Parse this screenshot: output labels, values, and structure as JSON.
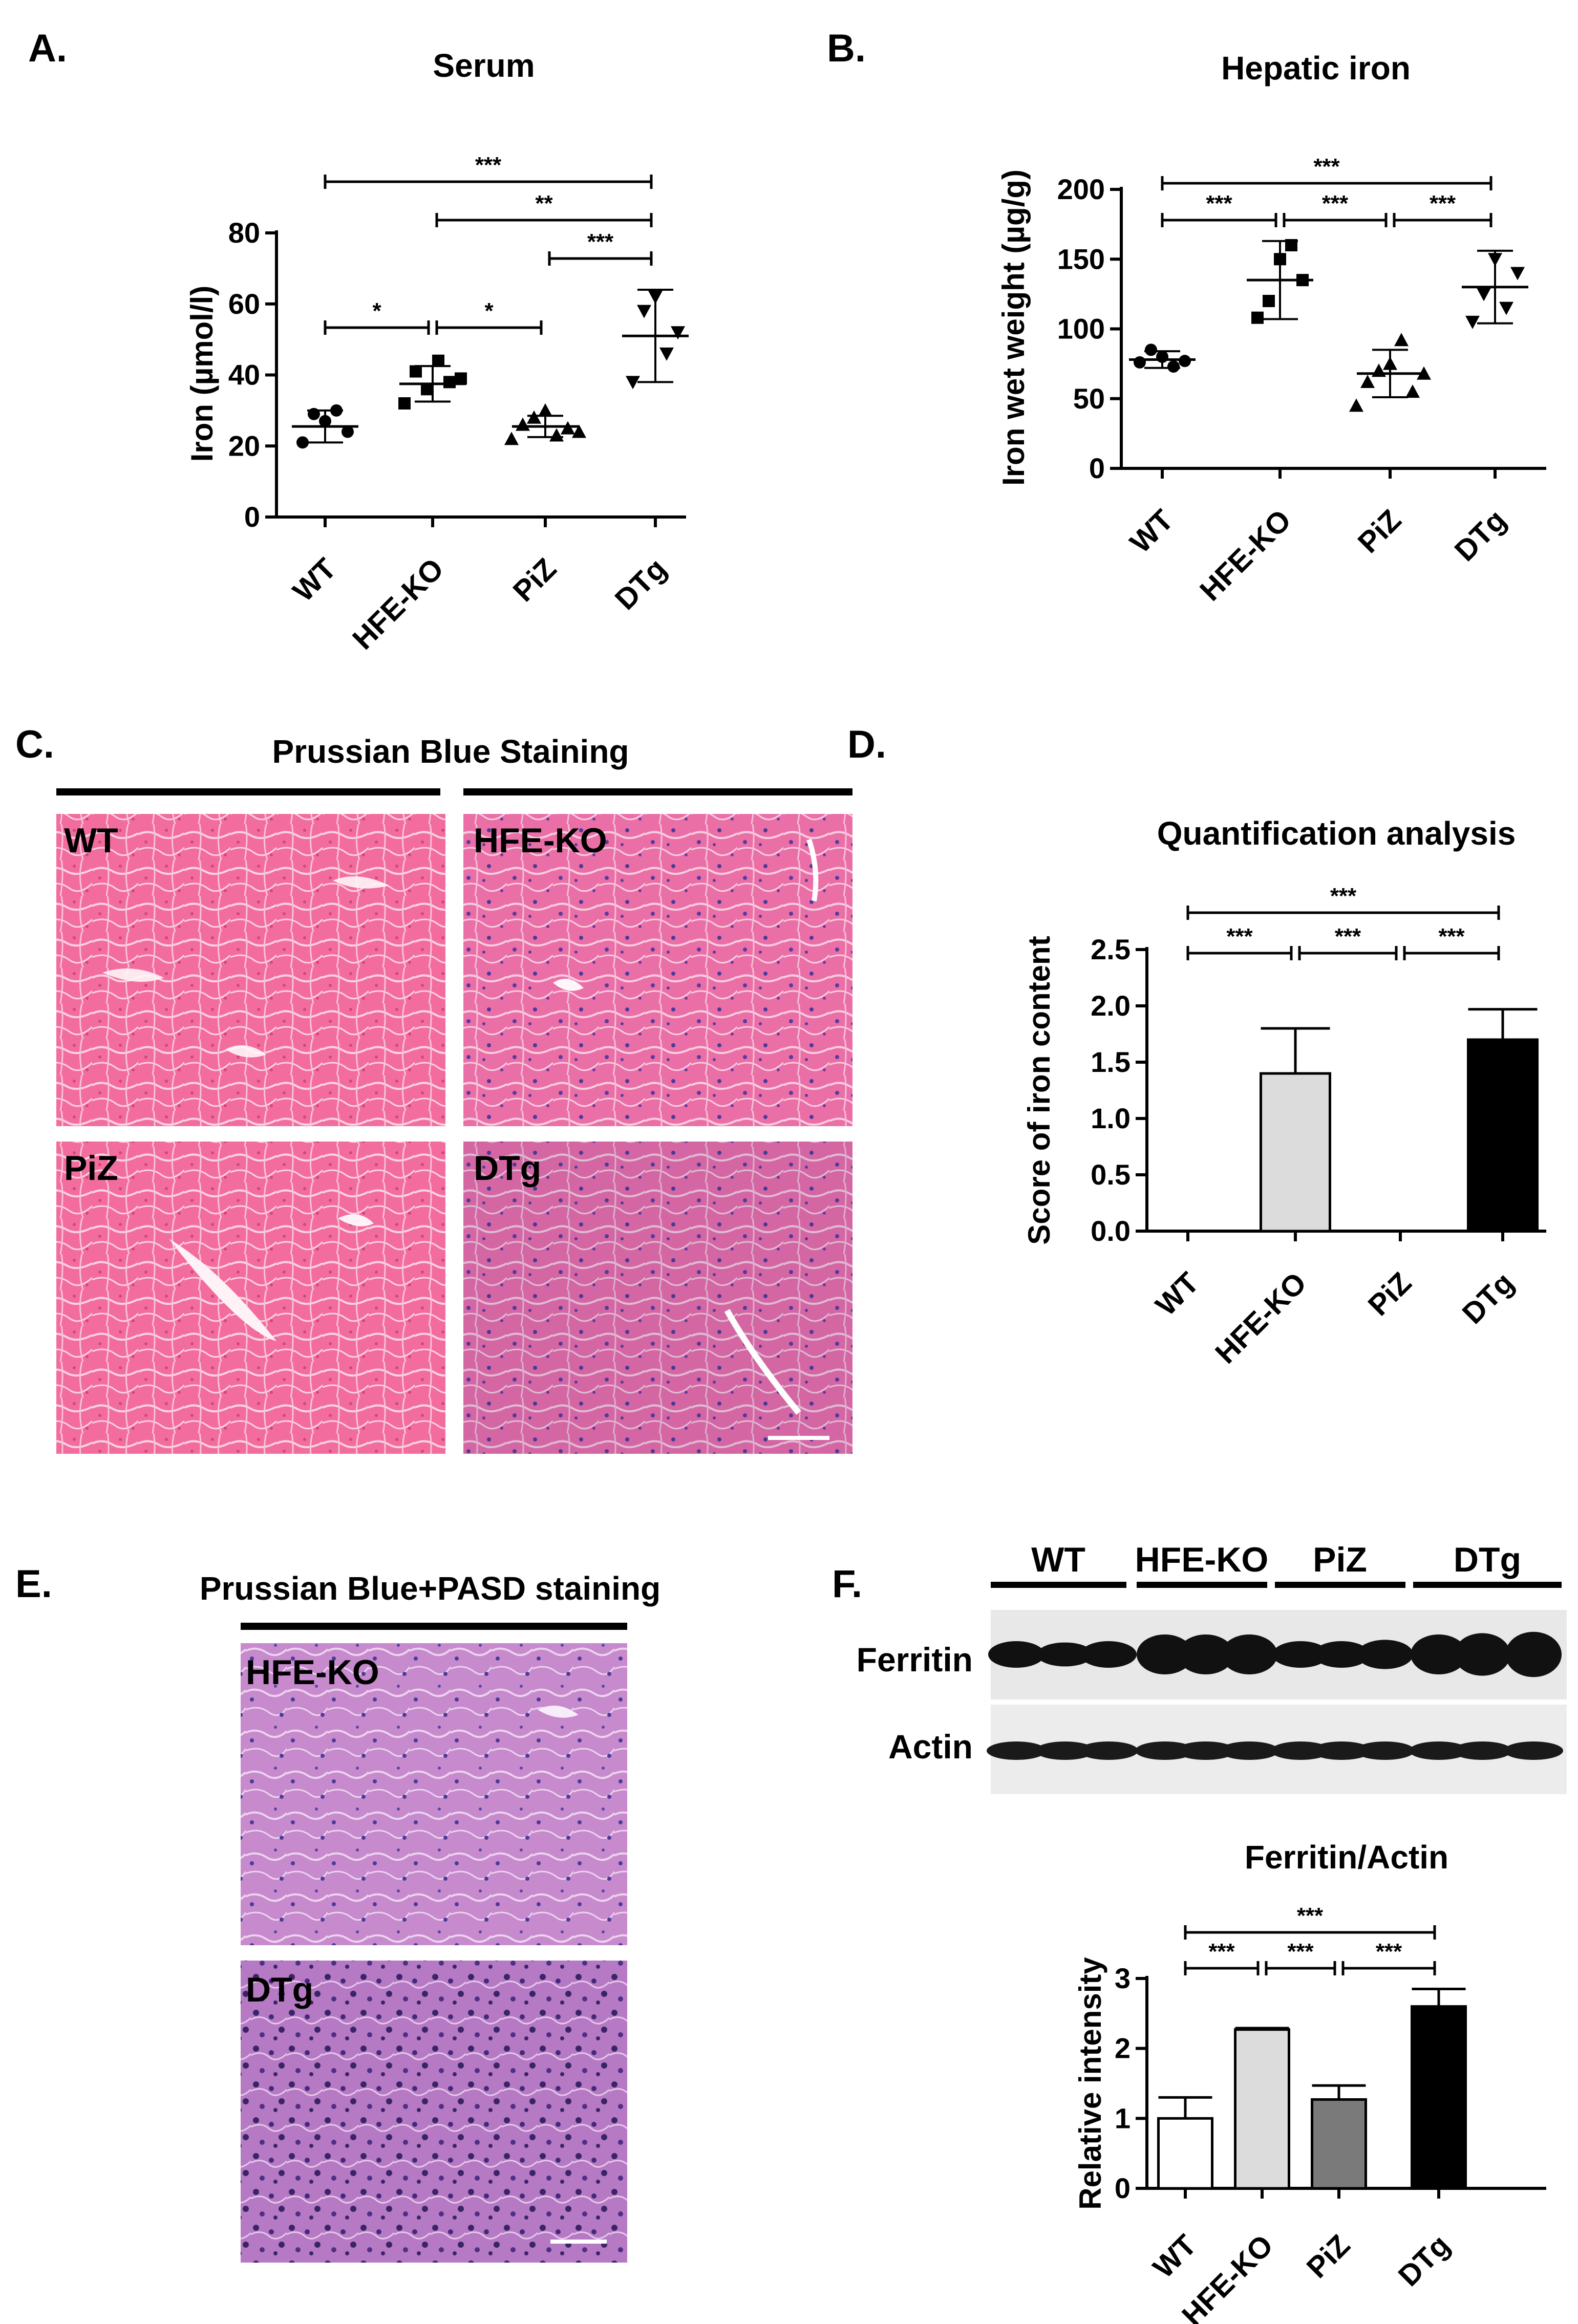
{
  "panels": {
    "A": {
      "letter": "A."
    },
    "B": {
      "letter": "B."
    },
    "C": {
      "letter": "C."
    },
    "D": {
      "letter": "D."
    },
    "E": {
      "letter": "E."
    },
    "F": {
      "letter": "F."
    }
  },
  "colors": {
    "he_stain": "#f06a9a",
    "prussian_blue": "#3a2f8f",
    "bar_hfe": "#dcdcdc",
    "bar_piz": "#7a7a7a",
    "bar_dtg": "#000000"
  },
  "chart_data": [
    {
      "id": "A",
      "type": "scatter",
      "title": "Serum",
      "xlabel": "",
      "ylabel": "Iron (µmol/l)",
      "ylim": [
        0,
        80
      ],
      "yticks": [
        "0",
        "20",
        "40",
        "60",
        "80"
      ],
      "categories": [
        "WT",
        "HFE-KO",
        "PiZ",
        "DTg"
      ],
      "points": [
        [
          21,
          29,
          27,
          30,
          24
        ],
        [
          32,
          41,
          36,
          44,
          38,
          39
        ],
        [
          22,
          26,
          28,
          30,
          23,
          25,
          24
        ],
        [
          38,
          58,
          62,
          46,
          52
        ]
      ],
      "markers": [
        "circle",
        "square",
        "triangle",
        "triangle-down"
      ],
      "means": [
        25.5,
        37.5,
        25.5,
        51
      ],
      "sd": [
        4.5,
        5,
        3,
        13
      ],
      "significance": [
        {
          "from": 0,
          "to": 3,
          "label": "***"
        },
        {
          "from": 1,
          "to": 3,
          "label": "**"
        },
        {
          "from": 2,
          "to": 3,
          "label": "***"
        },
        {
          "from": 0,
          "to": 1,
          "label": "*"
        },
        {
          "from": 1,
          "to": 2,
          "label": "*"
        }
      ]
    },
    {
      "id": "B",
      "type": "scatter",
      "title": "Hepatic iron",
      "xlabel": "",
      "ylabel": "Iron wet weight (µg/g)",
      "ylim": [
        0,
        200
      ],
      "yticks": [
        "0",
        "50",
        "100",
        "150",
        "200"
      ],
      "categories": [
        "WT",
        "HFE-KO",
        "PiZ",
        "DTg"
      ],
      "points": [
        [
          76,
          85,
          80,
          73,
          77
        ],
        [
          108,
          120,
          150,
          160,
          135
        ],
        [
          45,
          62,
          70,
          75,
          92,
          55,
          68
        ],
        [
          105,
          125,
          150,
          115,
          140
        ]
      ],
      "markers": [
        "circle",
        "square",
        "triangle",
        "triangle-down"
      ],
      "means": [
        78,
        135,
        68,
        130
      ],
      "sd": [
        6,
        28,
        17,
        26
      ],
      "significance": [
        {
          "from": 0,
          "to": 3,
          "label": "***"
        },
        {
          "from": 0,
          "to": 1,
          "label": "***"
        },
        {
          "from": 1,
          "to": 2,
          "label": "***"
        },
        {
          "from": 2,
          "to": 3,
          "label": "***"
        }
      ]
    },
    {
      "id": "D",
      "type": "bar",
      "title": "Quantification analysis",
      "xlabel": "",
      "ylabel": "Score of iron content",
      "ylim": [
        0,
        2.5
      ],
      "yticks": [
        "0.0",
        "0.5",
        "1.0",
        "1.5",
        "2.0",
        "2.5"
      ],
      "categories": [
        "WT",
        "HFE-KO",
        "PiZ",
        "DTg"
      ],
      "values": [
        0,
        1.4,
        0,
        1.7
      ],
      "errors": [
        0,
        0.4,
        0,
        0.27
      ],
      "significance": [
        {
          "from": 0,
          "to": 3,
          "label": "***"
        },
        {
          "from": 0,
          "to": 1,
          "label": "***"
        },
        {
          "from": 1,
          "to": 2,
          "label": "***"
        },
        {
          "from": 2,
          "to": 3,
          "label": "***"
        }
      ]
    },
    {
      "id": "F",
      "type": "bar",
      "title": "Ferritin/Actin",
      "xlabel": "",
      "ylabel": "Relative intensity",
      "ylim": [
        0,
        3
      ],
      "yticks": [
        "0",
        "1",
        "2",
        "3"
      ],
      "categories": [
        "WT",
        "HFE-KO",
        "PiZ",
        "DTg"
      ],
      "values": [
        1.0,
        2.27,
        1.27,
        2.6
      ],
      "errors": [
        0.3,
        0.02,
        0.2,
        0.25
      ],
      "significance": [
        {
          "from": 0,
          "to": 3,
          "label": "***"
        },
        {
          "from": 0,
          "to": 1,
          "label": "***"
        },
        {
          "from": 1,
          "to": 2,
          "label": "***"
        },
        {
          "from": 2,
          "to": 3,
          "label": "***"
        }
      ]
    }
  ],
  "histology": {
    "C": {
      "title": "Prussian Blue Staining",
      "images": [
        {
          "label": "WT",
          "stain": "plain"
        },
        {
          "label": "HFE-KO",
          "stain": "moderate"
        },
        {
          "label": "PiZ",
          "stain": "plain"
        },
        {
          "label": "DTg",
          "stain": "heavy"
        }
      ]
    },
    "E": {
      "title": "Prussian Blue+PASD staining",
      "images": [
        {
          "label": "HFE-KO",
          "stain": "pasd-moderate"
        },
        {
          "label": "DTg",
          "stain": "pasd-heavy"
        }
      ]
    }
  },
  "western": {
    "groups": [
      "WT",
      "HFE-KO",
      "PiZ",
      "DTg"
    ],
    "rows": [
      "Ferritin",
      "Actin"
    ]
  }
}
